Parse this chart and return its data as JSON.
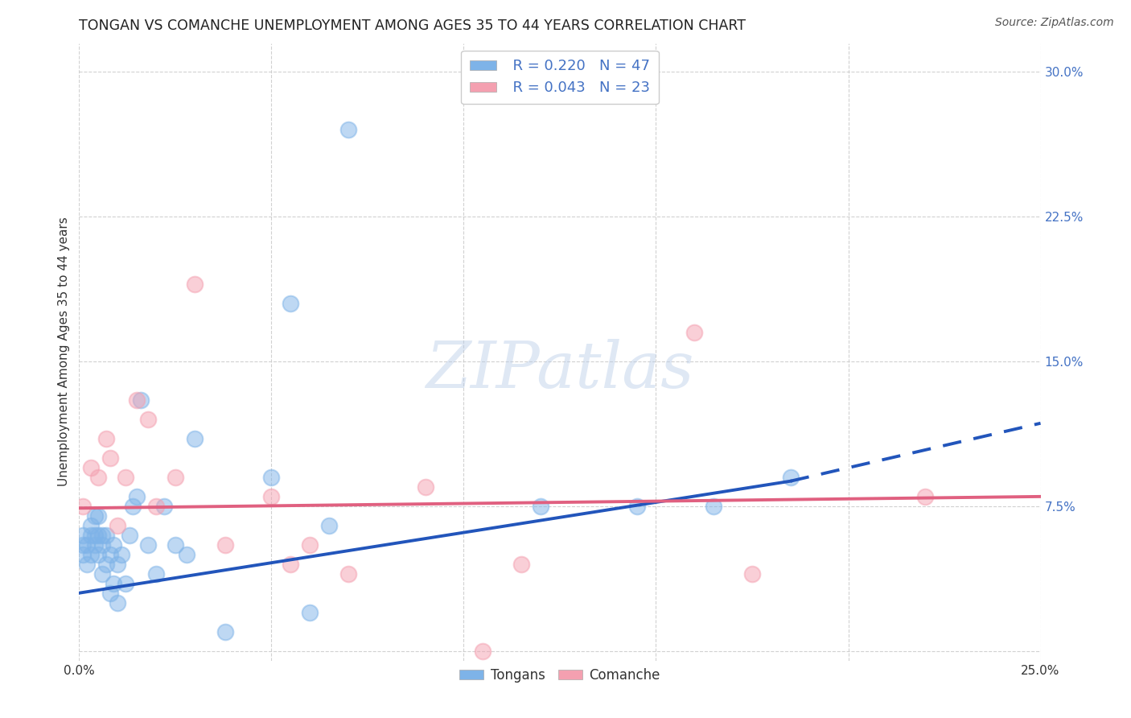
{
  "title": "TONGAN VS COMANCHE UNEMPLOYMENT AMONG AGES 35 TO 44 YEARS CORRELATION CHART",
  "source": "Source: ZipAtlas.com",
  "ylabel": "Unemployment Among Ages 35 to 44 years",
  "xlim": [
    0.0,
    0.25
  ],
  "ylim": [
    -0.005,
    0.315
  ],
  "xticks": [
    0.0,
    0.05,
    0.1,
    0.15,
    0.2,
    0.25
  ],
  "xticklabels": [
    "0.0%",
    "",
    "",
    "",
    "",
    "25.0%"
  ],
  "yticks": [
    0.0,
    0.075,
    0.15,
    0.225,
    0.3
  ],
  "yticklabels": [
    "",
    "7.5%",
    "15.0%",
    "22.5%",
    "30.0%"
  ],
  "tongans_color": "#7EB3E8",
  "comanche_color": "#F4A0B0",
  "tongans_line_color": "#2255BB",
  "comanche_line_color": "#E06080",
  "legend_R_tongans": "R = 0.220",
  "legend_N_tongans": "N = 47",
  "legend_R_comanche": "R = 0.043",
  "legend_N_comanche": "N = 23",
  "grid_color": "#CCCCCC",
  "background_color": "#FFFFFF",
  "watermark": "ZIPatlas",
  "tongans_x": [
    0.001,
    0.001,
    0.001,
    0.002,
    0.002,
    0.003,
    0.003,
    0.003,
    0.004,
    0.004,
    0.004,
    0.005,
    0.005,
    0.005,
    0.006,
    0.006,
    0.006,
    0.007,
    0.007,
    0.008,
    0.008,
    0.009,
    0.009,
    0.01,
    0.01,
    0.011,
    0.012,
    0.013,
    0.014,
    0.015,
    0.016,
    0.018,
    0.02,
    0.022,
    0.025,
    0.028,
    0.03,
    0.038,
    0.05,
    0.055,
    0.06,
    0.065,
    0.07,
    0.12,
    0.145,
    0.165,
    0.185
  ],
  "tongans_y": [
    0.05,
    0.055,
    0.06,
    0.045,
    0.055,
    0.06,
    0.05,
    0.065,
    0.055,
    0.06,
    0.07,
    0.05,
    0.06,
    0.07,
    0.04,
    0.055,
    0.06,
    0.045,
    0.06,
    0.03,
    0.05,
    0.035,
    0.055,
    0.025,
    0.045,
    0.05,
    0.035,
    0.06,
    0.075,
    0.08,
    0.13,
    0.055,
    0.04,
    0.075,
    0.055,
    0.05,
    0.11,
    0.01,
    0.09,
    0.18,
    0.02,
    0.065,
    0.27,
    0.075,
    0.075,
    0.075,
    0.09
  ],
  "comanche_x": [
    0.001,
    0.003,
    0.005,
    0.007,
    0.008,
    0.01,
    0.012,
    0.015,
    0.018,
    0.02,
    0.025,
    0.03,
    0.038,
    0.05,
    0.055,
    0.06,
    0.07,
    0.09,
    0.105,
    0.115,
    0.16,
    0.175,
    0.22
  ],
  "comanche_y": [
    0.075,
    0.095,
    0.09,
    0.11,
    0.1,
    0.065,
    0.09,
    0.13,
    0.12,
    0.075,
    0.09,
    0.19,
    0.055,
    0.08,
    0.045,
    0.055,
    0.04,
    0.085,
    0.0,
    0.045,
    0.165,
    0.04,
    0.08
  ],
  "tongans_line_x0": 0.0,
  "tongans_line_y0": 0.03,
  "tongans_line_x1": 0.185,
  "tongans_line_y1": 0.088,
  "tongans_line_x2": 0.25,
  "tongans_line_y2": 0.118,
  "comanche_line_x0": 0.0,
  "comanche_line_y0": 0.074,
  "comanche_line_x1": 0.25,
  "comanche_line_y1": 0.08
}
